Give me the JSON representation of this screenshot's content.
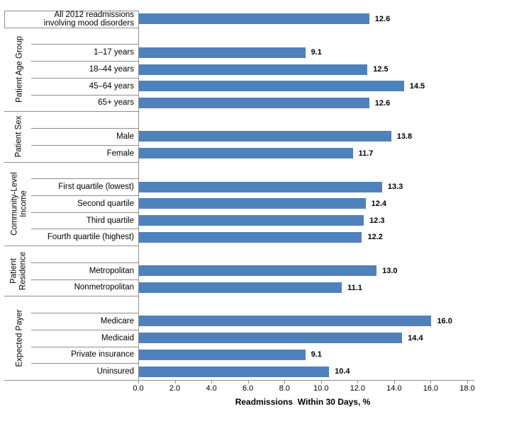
{
  "chart_data": {
    "type": "bar",
    "orientation": "horizontal",
    "title": "",
    "xlabel": "Readmissions  Within 30 Days, %",
    "ylabel": "",
    "xlim": [
      0,
      18
    ],
    "x_ticks": [
      0,
      2,
      4,
      6,
      8,
      10,
      12,
      14,
      16,
      18
    ],
    "x_tick_labels": [
      "0.0",
      "2.0",
      "4.0",
      "6.0",
      "8.0",
      "10.0",
      "12.0",
      "14.0",
      "16.0",
      "18.0"
    ],
    "grid": "off",
    "legend": "none",
    "bar_color": "#4F81BD",
    "line_color": "#8F8F8F",
    "text_color": "#000000",
    "groups": [
      {
        "label": "",
        "items": [
          {
            "label": "All 2012 readmissions\ninvolving mood disorders",
            "value": 12.6
          }
        ]
      },
      {
        "label": "Patient Age Group",
        "items": [
          {
            "label": "1–17 years",
            "value": 9.1
          },
          {
            "label": "18–44 years",
            "value": 12.5
          },
          {
            "label": "45–64 years",
            "value": 14.5
          },
          {
            "label": "65+ years",
            "value": 12.6
          }
        ]
      },
      {
        "label": "Patient Sex",
        "items": [
          {
            "label": "Male",
            "value": 13.8
          },
          {
            "label": "Female",
            "value": 11.7
          }
        ]
      },
      {
        "label": "Community-Level\nIncome",
        "items": [
          {
            "label": "First quartile (lowest)",
            "value": 13.3
          },
          {
            "label": "Second quartile",
            "value": 12.4
          },
          {
            "label": "Third quartile",
            "value": 12.3
          },
          {
            "label": "Fourth quartile (highest)",
            "value": 12.2
          }
        ]
      },
      {
        "label": "Patient\nResidence",
        "items": [
          {
            "label": "Metropolitan",
            "value": 13.0
          },
          {
            "label": "Nonmetropolitan",
            "value": 11.1
          }
        ]
      },
      {
        "label": "Expected Payer",
        "items": [
          {
            "label": "Medicare",
            "value": 16.0
          },
          {
            "label": "Medicaid",
            "value": 14.4
          },
          {
            "label": "Private insurance",
            "value": 9.1
          },
          {
            "label": "Uninsured",
            "value": 10.4
          }
        ]
      }
    ]
  }
}
